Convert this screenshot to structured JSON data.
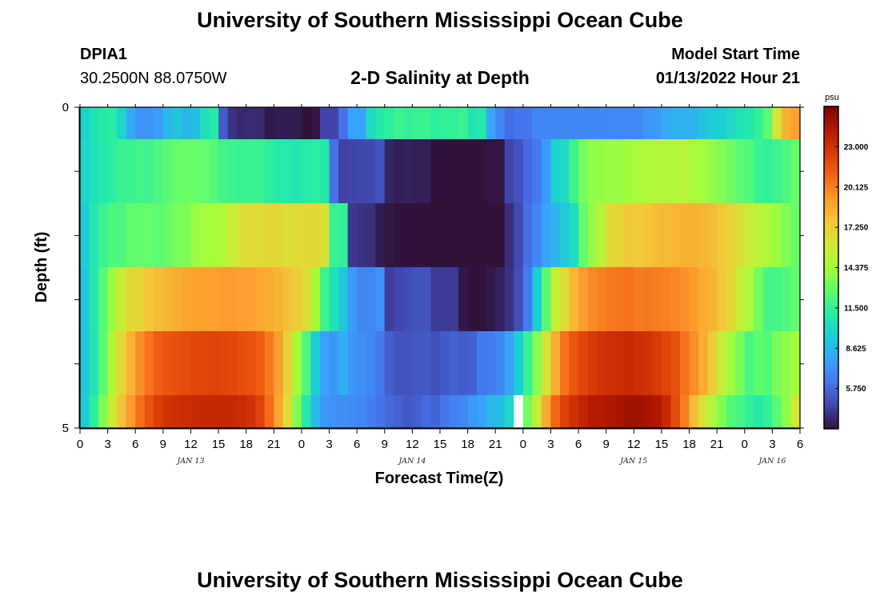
{
  "header": {
    "title": "University of Southern Mississippi Ocean Cube",
    "station_id": "DPIA1",
    "coordinates": "30.2500N  88.0750W",
    "subtitle": "2-D Salinity at Depth",
    "model_start_label": "Model Start Time",
    "model_start_value": "01/13/2022 Hour 21"
  },
  "footer": {
    "title": "University of Southern Mississippi Ocean Cube"
  },
  "chart_data": {
    "type": "heatmap",
    "title": "2-D Salinity at Depth",
    "xlabel": "Forecast Time(Z)",
    "ylabel": "Depth (ft)",
    "x_tick_labels": [
      "0",
      "3",
      "6",
      "9",
      "12",
      "15",
      "18",
      "21",
      "0",
      "3",
      "6",
      "9",
      "12",
      "15",
      "18",
      "21",
      "0",
      "3",
      "6",
      "9",
      "12",
      "15",
      "18",
      "21",
      "0",
      "3",
      "6"
    ],
    "day_labels": [
      {
        "label": "JAN 13",
        "tick_index": 4
      },
      {
        "label": "JAN 14",
        "tick_index": 12
      },
      {
        "label": "JAN 15",
        "tick_index": 20
      },
      {
        "label": "JAN 16",
        "tick_index": 25
      }
    ],
    "y_tick_labels": [
      "0",
      "5"
    ],
    "ylim": [
      0,
      5
    ],
    "x_hours": [
      0,
      78
    ],
    "colorbar": {
      "unit": "psu",
      "range": [
        2.875,
        25.875
      ],
      "tick_labels": [
        "23.000",
        "20.125",
        "17.250",
        "14.375",
        "11.500",
        "8.625",
        "5.750"
      ],
      "tick_values": [
        23.0,
        20.125,
        17.25,
        14.375,
        11.5,
        8.625,
        5.75
      ],
      "colors": [
        "#30123b",
        "#4145ab",
        "#4675ed",
        "#39a2fc",
        "#1bcfd4",
        "#24eca6",
        "#61fc6c",
        "#a4fc3b",
        "#d1e834",
        "#f3c63a",
        "#fe9b2d",
        "#f36315",
        "#d93806",
        "#b11901",
        "#7a0402"
      ]
    },
    "series": [
      {
        "name": "layer 1 (top)",
        "values": [
          9.7,
          10.5,
          11,
          11.2,
          9.8,
          8.1,
          7.2,
          7.3,
          7.6,
          8.6,
          9.1,
          8.5,
          8.9,
          10.3,
          11,
          5.3,
          3.9,
          3.6,
          3.7,
          3.6,
          3.1,
          3.2,
          3.2,
          3.2,
          2.8,
          3.0,
          4.5,
          4.5,
          6,
          7.8,
          7.9,
          10.1,
          11,
          11.3,
          11.8,
          11.5,
          11.6,
          11.7,
          11.3,
          11.5,
          11.4,
          11.7,
          10.6,
          11,
          8,
          6.8,
          5.9,
          6.2,
          6.2,
          6.8,
          6.8,
          6.8,
          6.8,
          6.8,
          6.8,
          6.8,
          6.8,
          6.9,
          6.9,
          6.9,
          6.9,
          7.4,
          7.5,
          8.1,
          8.4,
          8.4,
          8.5,
          9,
          9.3,
          9.4,
          10,
          10.5,
          10.8,
          11.5,
          12.6,
          16.2,
          18.5,
          19.1
        ]
      },
      {
        "name": "layer 2",
        "values": [
          9.9,
          10.4,
          10.9,
          11.3,
          11.7,
          11.7,
          11.9,
          11.8,
          12.2,
          12.5,
          12.8,
          12.9,
          12.9,
          12.8,
          12.4,
          11.9,
          11.8,
          11.6,
          11.7,
          11.7,
          11.3,
          11.1,
          10.9,
          10.7,
          10.9,
          11.2,
          10.9,
          6,
          4.4,
          4.5,
          4.6,
          4.7,
          5,
          3.5,
          3.3,
          3.4,
          3.3,
          3.3,
          2.9,
          2.9,
          2.5,
          2.7,
          1.8,
          2,
          3,
          3,
          4.5,
          5,
          5.8,
          6.3,
          7.5,
          9.6,
          10.1,
          11.8,
          13.2,
          13.9,
          14,
          14.2,
          14.1,
          14.3,
          14.6,
          14.8,
          14.8,
          14.9,
          14.9,
          15,
          14.6,
          14.3,
          13.9,
          13.5,
          13,
          12.5,
          12.3,
          11.6,
          11.4,
          11.8,
          12.2,
          12.9
        ]
      },
      {
        "name": "layer 3",
        "values": [
          9.4,
          10.8,
          11.7,
          12.2,
          12.2,
          12.7,
          12.7,
          12.8,
          12.6,
          12.8,
          13.3,
          13.4,
          14.1,
          14.4,
          14.4,
          14.8,
          15.6,
          16.3,
          16.7,
          16.7,
          16.9,
          16.9,
          16.5,
          16.7,
          16.7,
          16.8,
          16.3,
          11.6,
          11.5,
          4.1,
          3.9,
          3.8,
          3.2,
          3.0,
          2.9,
          2.9,
          2.8,
          2.8,
          2.8,
          2.4,
          2.4,
          2.0,
          1.8,
          1.6,
          2.2,
          2.8,
          3.8,
          4.7,
          6.0,
          6.8,
          7.8,
          8.5,
          9.2,
          10.1,
          12.7,
          14,
          15.2,
          16.7,
          17.1,
          17.5,
          17.4,
          17.7,
          18.1,
          18.2,
          18.3,
          18.4,
          18.5,
          18.3,
          18.1,
          17.5,
          17.1,
          16.5,
          15.7,
          15.3,
          14.7,
          14.2,
          13.5,
          12.9
        ]
      },
      {
        "name": "layer 4",
        "values": [
          9.1,
          10.8,
          12.4,
          14.1,
          15.7,
          16.7,
          17,
          17.6,
          18,
          18.3,
          18.6,
          18.9,
          19,
          19.1,
          19.2,
          19.3,
          19.3,
          19.1,
          19.1,
          18.8,
          18.6,
          18.3,
          17.9,
          17.4,
          16.6,
          14.5,
          11.8,
          10.4,
          9.2,
          7.6,
          6.8,
          6.9,
          7.2,
          4.3,
          4.6,
          4.8,
          5.0,
          5.0,
          4.2,
          4.2,
          4.2,
          3.1,
          2.6,
          2.8,
          3.1,
          3.4,
          3.9,
          4.8,
          6.4,
          9.4,
          12.5,
          15.5,
          16.7,
          18.2,
          19.3,
          19.8,
          20.1,
          20.3,
          20.4,
          20.5,
          20.2,
          20.3,
          20.2,
          20.1,
          19.9,
          19.6,
          19.3,
          18.7,
          18.4,
          17.6,
          16.9,
          15.6,
          14.6,
          13.2,
          12,
          12,
          12.3,
          12.7
        ]
      },
      {
        "name": "layer 5",
        "values": [
          9.2,
          10.6,
          12.5,
          15.1,
          16.9,
          18.4,
          19.7,
          20.5,
          21.2,
          21.5,
          21.7,
          21.8,
          22,
          22.1,
          22.2,
          22.1,
          22,
          21.7,
          21.6,
          21.2,
          20.3,
          19.2,
          17.1,
          14.5,
          12.2,
          9.4,
          7.8,
          7.4,
          8.3,
          7.4,
          7.1,
          6.9,
          6.3,
          5.4,
          5.0,
          5.0,
          5.1,
          5.2,
          4.9,
          5.2,
          5.5,
          5.3,
          5.5,
          6.4,
          6.4,
          6.8,
          7.8,
          9.4,
          11.6,
          13.6,
          16.3,
          18.6,
          20.5,
          21.5,
          22.1,
          22.6,
          22.9,
          23.1,
          23.2,
          23.3,
          23.1,
          22.9,
          22.5,
          22.1,
          21.6,
          20.5,
          19.7,
          18.7,
          17.3,
          15.6,
          14.3,
          13.3,
          12.2,
          12.6,
          12.4,
          13.4,
          13.8,
          14.4
        ]
      },
      {
        "name": "layer 6 (bottom)",
        "values": [
          9.3,
          11.3,
          13.5,
          15.8,
          17.8,
          19.3,
          20.6,
          21.6,
          22.4,
          22.9,
          23.1,
          23.2,
          23.3,
          23.4,
          23.4,
          23.5,
          23.4,
          23.2,
          22.9,
          22.2,
          20.7,
          18.9,
          16.6,
          13.5,
          10.9,
          8.7,
          7.4,
          7.2,
          7.1,
          7.0,
          6.8,
          6.5,
          6.1,
          5.7,
          5.5,
          5.2,
          5.4,
          5.8,
          5.6,
          6.2,
          6.6,
          6.8,
          7.5,
          7.8,
          8.6,
          8.8,
          9.9,
          11.4,
          13.2,
          15.6,
          18.7,
          20.9,
          22.3,
          23.0,
          23.6,
          24.1,
          24.2,
          24.3,
          24.5,
          24.7,
          24.7,
          24.5,
          24.3,
          23.4,
          21.8,
          20.1,
          18.1,
          16.3,
          14.7,
          13.5,
          12.4,
          12.0,
          11.4,
          11.0,
          11.5,
          12.5,
          13.8,
          16.0
        ]
      }
    ],
    "missing_cells": [
      {
        "layer": 6,
        "hour_index": 47
      }
    ]
  }
}
